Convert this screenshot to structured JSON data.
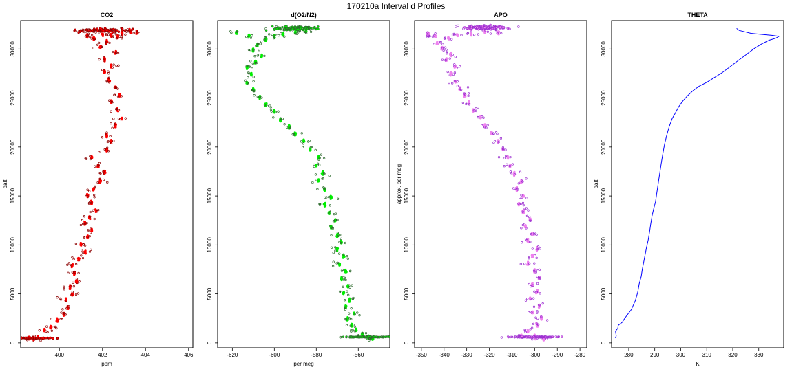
{
  "title": "170210a   Interval d Profiles",
  "chart_data": [
    {
      "type": "scatter",
      "title": "CO2",
      "xlabel": "ppm",
      "ylabel": "palt",
      "xlim": [
        398.2,
        406.2
      ],
      "ylim": [
        -500,
        32900
      ],
      "xticks": [
        400,
        402,
        404,
        406
      ],
      "yticks": [
        0,
        5000,
        10000,
        15000,
        20000,
        25000,
        30000
      ],
      "colors": {
        "dense": "#ff0000",
        "edge": "#8b0000"
      },
      "series": [
        {
          "values": [
            [
              398.6,
              500
            ],
            [
              398.8,
              450
            ],
            [
              399.0,
              600
            ],
            [
              399.3,
              1300
            ],
            [
              399.6,
              1600
            ],
            [
              399.9,
              2300
            ],
            [
              400.2,
              2900
            ],
            [
              400.4,
              3600
            ],
            [
              400.3,
              4400
            ],
            [
              400.6,
              4900
            ],
            [
              400.5,
              5700
            ],
            [
              400.8,
              6300
            ],
            [
              400.7,
              7100
            ],
            [
              400.6,
              7900
            ],
            [
              400.9,
              8600
            ],
            [
              401.2,
              9300
            ],
            [
              401.0,
              10100
            ],
            [
              401.3,
              10800
            ],
            [
              401.5,
              11500
            ],
            [
              401.2,
              12200
            ],
            [
              401.4,
              12800
            ],
            [
              401.7,
              13500
            ],
            [
              401.5,
              14300
            ],
            [
              401.3,
              15000
            ],
            [
              401.6,
              15700
            ],
            [
              401.9,
              16500
            ],
            [
              402.1,
              17400
            ],
            [
              401.8,
              18100
            ],
            [
              401.5,
              18900
            ],
            [
              402.2,
              19700
            ],
            [
              402.4,
              20600
            ],
            [
              402.2,
              21200
            ],
            [
              402.6,
              22200
            ],
            [
              402.9,
              22900
            ],
            [
              402.7,
              23800
            ],
            [
              402.4,
              24600
            ],
            [
              402.8,
              25300
            ],
            [
              402.6,
              26100
            ],
            [
              402.3,
              26800
            ],
            [
              402.1,
              27700
            ],
            [
              402.4,
              28300
            ],
            [
              402.1,
              28900
            ],
            [
              402.6,
              29600
            ],
            [
              401.9,
              30200
            ],
            [
              402.2,
              30700
            ],
            [
              401.6,
              31100
            ],
            [
              402.4,
              31400
            ],
            [
              402.9,
              31600
            ],
            [
              403.3,
              31800
            ],
            [
              402.0,
              31500
            ],
            [
              401.3,
              31300
            ],
            [
              402.7,
              31200
            ],
            [
              403.6,
              31700
            ]
          ]
        }
      ]
    },
    {
      "type": "scatter",
      "title": "d(O2/N2)",
      "xlabel": "per meg",
      "ylabel": "",
      "xlim": [
        -627,
        -545
      ],
      "ylim": [
        -500,
        32900
      ],
      "xticks": [
        -620,
        -600,
        -580,
        -560
      ],
      "yticks": [
        0,
        5000,
        10000,
        15000,
        20000,
        25000,
        30000
      ],
      "colors": {
        "dense": "#00ee00",
        "edge": "#2e6b2e"
      },
      "series": [
        {
          "values": [
            [
              -555,
              600
            ],
            [
              -553,
              450
            ],
            [
              -558,
              800
            ],
            [
              -561,
              1300
            ],
            [
              -563,
              1800
            ],
            [
              -565,
              2400
            ],
            [
              -562,
              3000
            ],
            [
              -566,
              3700
            ],
            [
              -564,
              4400
            ],
            [
              -567,
              5100
            ],
            [
              -565,
              5800
            ],
            [
              -568,
              6500
            ],
            [
              -566,
              7300
            ],
            [
              -569,
              8000
            ],
            [
              -567,
              8800
            ],
            [
              -570,
              9500
            ],
            [
              -568,
              10300
            ],
            [
              -570,
              11000
            ],
            [
              -573,
              11800
            ],
            [
              -571,
              12500
            ],
            [
              -574,
              13300
            ],
            [
              -576,
              14100
            ],
            [
              -573,
              14900
            ],
            [
              -576,
              15700
            ],
            [
              -579,
              16600
            ],
            [
              -577,
              17300
            ],
            [
              -580,
              18100
            ],
            [
              -579,
              19000
            ],
            [
              -583,
              19800
            ],
            [
              -586,
              20600
            ],
            [
              -590,
              21300
            ],
            [
              -593,
              22100
            ],
            [
              -597,
              22800
            ],
            [
              -600,
              23600
            ],
            [
              -604,
              24300
            ],
            [
              -607,
              25100
            ],
            [
              -610,
              25800
            ],
            [
              -613,
              26600
            ],
            [
              -611,
              27400
            ],
            [
              -613,
              28100
            ],
            [
              -609,
              28700
            ],
            [
              -606,
              29300
            ],
            [
              -610,
              29900
            ],
            [
              -608,
              30400
            ],
            [
              -604,
              31000
            ],
            [
              -600,
              31300
            ],
            [
              -596,
              31500
            ],
            [
              -590,
              31700
            ],
            [
              -585,
              31800
            ],
            [
              -612,
              31400
            ],
            [
              -618,
              31700
            ]
          ]
        }
      ]
    },
    {
      "type": "scatter",
      "title": "APO",
      "xlabel": "",
      "ylabel": "approx. per meg",
      "xlim": [
        -353,
        -277
      ],
      "ylim": [
        -500,
        32900
      ],
      "xticks": [
        -350,
        -340,
        -330,
        -320,
        -310,
        -300,
        -290,
        -280
      ],
      "yticks": [
        0,
        5000,
        10000,
        15000,
        20000,
        25000,
        30000
      ],
      "colors": {
        "dense": "#ee82ee",
        "edge": "#9b30d0"
      },
      "series": [
        {
          "values": [
            [
              -300,
              600
            ],
            [
              -296,
              450
            ],
            [
              -306,
              700
            ],
            [
              -303,
              1200
            ],
            [
              -299,
              1800
            ],
            [
              -297,
              2500
            ],
            [
              -301,
              3100
            ],
            [
              -298,
              3800
            ],
            [
              -302,
              4500
            ],
            [
              -299,
              5200
            ],
            [
              -301,
              5900
            ],
            [
              -298,
              6600
            ],
            [
              -300,
              7400
            ],
            [
              -303,
              8100
            ],
            [
              -301,
              8900
            ],
            [
              -299,
              9600
            ],
            [
              -303,
              10400
            ],
            [
              -301,
              11100
            ],
            [
              -304,
              11900
            ],
            [
              -302,
              12600
            ],
            [
              -305,
              13400
            ],
            [
              -307,
              14200
            ],
            [
              -305,
              15000
            ],
            [
              -308,
              15700
            ],
            [
              -306,
              16500
            ],
            [
              -309,
              17300
            ],
            [
              -311,
              18100
            ],
            [
              -312,
              19000
            ],
            [
              -314,
              19800
            ],
            [
              -316,
              20600
            ],
            [
              -319,
              21400
            ],
            [
              -322,
              22200
            ],
            [
              -324,
              23000
            ],
            [
              -327,
              23800
            ],
            [
              -329,
              24500
            ],
            [
              -331,
              25300
            ],
            [
              -333,
              26000
            ],
            [
              -335,
              26700
            ],
            [
              -337,
              27500
            ],
            [
              -335,
              28200
            ],
            [
              -339,
              28900
            ],
            [
              -337,
              29500
            ],
            [
              -341,
              30100
            ],
            [
              -343,
              30600
            ],
            [
              -338,
              31100
            ],
            [
              -334,
              31400
            ],
            [
              -328,
              31600
            ],
            [
              -322,
              31800
            ],
            [
              -316,
              31700
            ],
            [
              -344,
              31300
            ],
            [
              -347,
              31600
            ]
          ]
        }
      ]
    },
    {
      "type": "line",
      "title": "THETA",
      "xlabel": "K",
      "ylabel": "palt",
      "xlim": [
        273.4,
        339.6
      ],
      "ylim": [
        -500,
        32900
      ],
      "xticks": [
        280,
        290,
        300,
        310,
        320,
        330
      ],
      "yticks": [
        0,
        5000,
        10000,
        15000,
        20000,
        25000,
        30000
      ],
      "colors": {
        "line": "#0000ff"
      },
      "series": [
        {
          "values": [
            [
              274.8,
              500
            ],
            [
              275.2,
              700
            ],
            [
              274.9,
              1200
            ],
            [
              275.8,
              1500
            ],
            [
              276.0,
              1800
            ],
            [
              277.5,
              2100
            ],
            [
              278.2,
              2400
            ],
            [
              279.0,
              2700
            ],
            [
              281.0,
              3400
            ],
            [
              282.5,
              4300
            ],
            [
              283.5,
              5200
            ],
            [
              284.0,
              6000
            ],
            [
              284.8,
              6800
            ],
            [
              285.2,
              7500
            ],
            [
              285.8,
              8300
            ],
            [
              286.3,
              9000
            ],
            [
              286.8,
              9700
            ],
            [
              287.5,
              10500
            ],
            [
              288.0,
              11300
            ],
            [
              288.5,
              12200
            ],
            [
              289.0,
              13000
            ],
            [
              289.6,
              13700
            ],
            [
              290.3,
              14400
            ],
            [
              290.8,
              15300
            ],
            [
              291.4,
              16400
            ],
            [
              291.9,
              17300
            ],
            [
              292.5,
              18300
            ],
            [
              293.1,
              19300
            ],
            [
              293.8,
              20300
            ],
            [
              294.6,
              21200
            ],
            [
              295.6,
              22100
            ],
            [
              296.7,
              22900
            ],
            [
              297.8,
              23400
            ],
            [
              299.2,
              24100
            ],
            [
              300.8,
              24700
            ],
            [
              302.5,
              25200
            ],
            [
              304.5,
              25700
            ],
            [
              307.0,
              26200
            ],
            [
              310.0,
              26600
            ],
            [
              313.0,
              27100
            ],
            [
              316.0,
              27600
            ],
            [
              319.0,
              28200
            ],
            [
              322.0,
              28800
            ],
            [
              325.0,
              29400
            ],
            [
              328.0,
              30000
            ],
            [
              331.0,
              30500
            ],
            [
              334.0,
              30900
            ],
            [
              336.5,
              31100
            ],
            [
              337.8,
              31300
            ],
            [
              335.0,
              31400
            ],
            [
              331.0,
              31500
            ],
            [
              327.0,
              31600
            ],
            [
              324.0,
              31800
            ],
            [
              322.5,
              31900
            ],
            [
              321.5,
              32100
            ]
          ]
        }
      ]
    }
  ]
}
